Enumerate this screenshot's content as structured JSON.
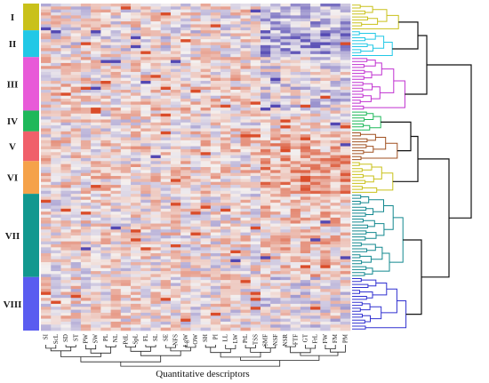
{
  "chart_data": {
    "type": "heatmap",
    "title": "",
    "xlabel": "Quantitative descriptors",
    "ylabel": "",
    "columns": [
      "SI",
      "ScL",
      "SD",
      "ST",
      "PW",
      "SW",
      "PL",
      "NL",
      "PdL",
      "SpL",
      "FL",
      "SL",
      "SE",
      "NFS",
      "LgW",
      "OW",
      "SH",
      "PI",
      "LL",
      "LW",
      "PtL",
      "TSS",
      "SMF",
      "NSF",
      "NSR",
      "FTF",
      "GT",
      "FrL",
      "FW",
      "FM",
      "PM"
    ],
    "row_count": 110,
    "color_scale": {
      "low": "#4a3fb0",
      "mid": "#f4f0ef",
      "high": "#d94420"
    },
    "groups": [
      {
        "label": "I",
        "color": "#c9c11a",
        "rows": 9
      },
      {
        "label": "II",
        "color": "#22c8e6",
        "rows": 9
      },
      {
        "label": "III",
        "color": "#e85ad8",
        "rows": 18
      },
      {
        "label": "IV",
        "color": "#1fb85a",
        "rows": 7
      },
      {
        "label": "V",
        "color": "#f0606a",
        "rows": 10
      },
      {
        "label": "VI",
        "color": "#f5a24a",
        "rows": 11
      },
      {
        "label": "VII",
        "color": "#12988f",
        "rows": 28
      },
      {
        "label": "VIII",
        "color": "#5a5cf0",
        "rows": 18
      }
    ],
    "column_blocks_warm": [
      22,
      23,
      24,
      25,
      26,
      27,
      28,
      29,
      30
    ],
    "dendrogram_colors": [
      "#c9c11a",
      "#22c8e6",
      "#c030d0",
      "#1fb85a",
      "#a05020",
      "#c9c11a",
      "#12888f",
      "#3030d0"
    ]
  }
}
